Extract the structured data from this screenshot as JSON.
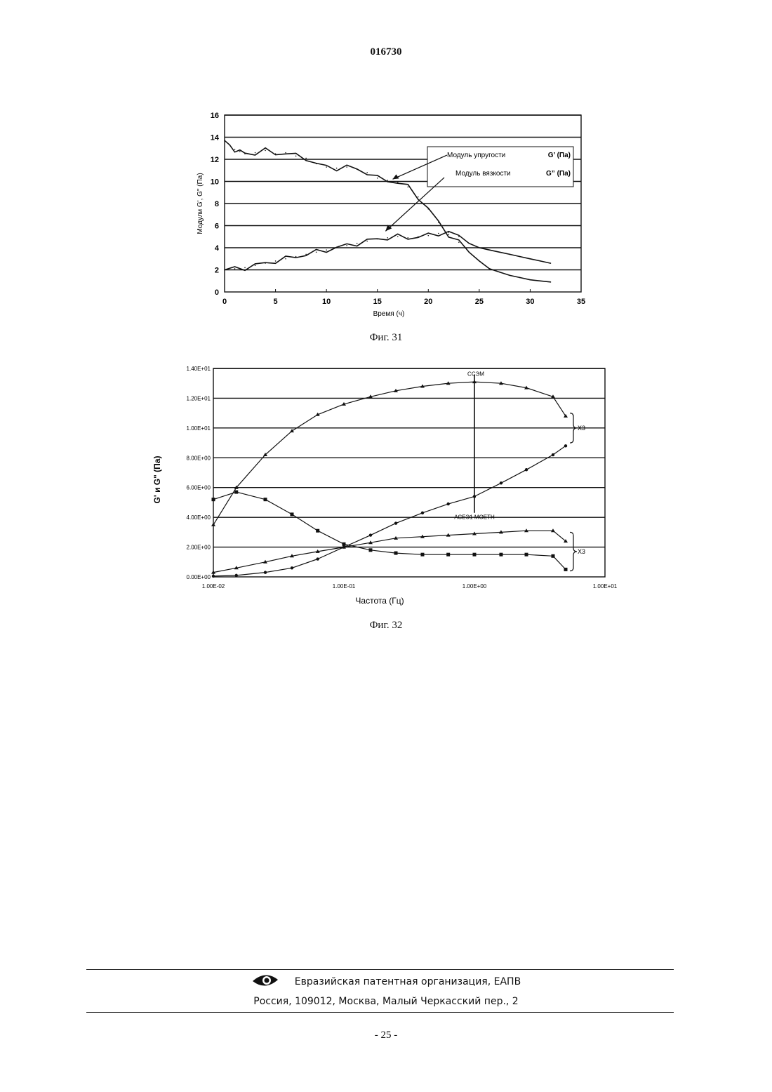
{
  "header": {
    "doc_number": "016730"
  },
  "figures": [
    {
      "caption": "Фиг. 31"
    },
    {
      "caption": "Фиг. 32"
    }
  ],
  "chart_data": [
    {
      "type": "line",
      "xlabel": "Время (ч)",
      "ylabel": "Модули G', G\" (Па)",
      "xlim": [
        0,
        35
      ],
      "ylim": [
        0,
        16
      ],
      "x_ticks": [
        0,
        5,
        10,
        15,
        20,
        25,
        30,
        35
      ],
      "y_ticks": [
        0,
        2,
        4,
        6,
        8,
        10,
        12,
        14,
        16
      ],
      "grid": "horizontal",
      "legend": {
        "position": "top-right",
        "entries": [
          {
            "label": "Модуль упругости",
            "symbol": "G’ (Па)"
          },
          {
            "label": "Модуль вязкости",
            "symbol": "G” (Па)"
          }
        ]
      },
      "series": [
        {
          "x": [
            0,
            0.5,
            1,
            1.5,
            2,
            3,
            4,
            5,
            6,
            7,
            8,
            9,
            10,
            11,
            12,
            13,
            14,
            15,
            16,
            17,
            18,
            19,
            20,
            21,
            22,
            23,
            24,
            25,
            26,
            27,
            28,
            29,
            30,
            31,
            32
          ],
          "y": [
            13.7,
            13.3,
            12.9,
            12.7,
            12.5,
            12.6,
            12.8,
            12.5,
            12.6,
            12.3,
            12.1,
            11.6,
            11.3,
            11.2,
            11.3,
            11.1,
            10.8,
            10.3,
            10.1,
            9.9,
            9.5,
            8.6,
            7.5,
            6.3,
            5.2,
            4.5,
            3.6,
            2.8,
            2.1,
            1.8,
            1.5,
            1.3,
            1.1,
            1.0,
            0.9
          ]
        },
        {
          "x": [
            0,
            1,
            2,
            3,
            4,
            5,
            6,
            7,
            8,
            9,
            10,
            11,
            12,
            13,
            14,
            15,
            16,
            17,
            18,
            19,
            20,
            21,
            22,
            23,
            24,
            25,
            26,
            27,
            28,
            29,
            30,
            31,
            32
          ],
          "y": [
            2.0,
            2.1,
            2.2,
            2.4,
            2.6,
            2.8,
            3.0,
            3.2,
            3.4,
            3.6,
            3.8,
            4.0,
            4.2,
            4.4,
            4.6,
            4.8,
            4.9,
            5.0,
            4.9,
            5.0,
            5.1,
            5.3,
            5.4,
            5.0,
            4.4,
            4.0,
            3.8,
            3.6,
            3.4,
            3.2,
            3.0,
            2.8,
            2.6
          ]
        }
      ]
    },
    {
      "type": "line",
      "xlabel": "Частота (Гц)",
      "ylabel": "G' и G\" (Па)",
      "x_scale": "log",
      "xlim": [
        0.01,
        10
      ],
      "ylim": [
        0,
        14
      ],
      "x_tick_labels": [
        "1.00E-02",
        "1.00E-01",
        "1.00E+00",
        "1.00E+01"
      ],
      "y_tick_labels": [
        "0.00E+00",
        "2.00E+00",
        "4.00E+00",
        "6.00E+00",
        "8.00E+00",
        "1.00E+01",
        "1.20E+01",
        "1.40E+01"
      ],
      "grid": "horizontal",
      "annotations": [
        "ССЭМ",
        "АСЕЭ1 МОЕТН",
        "Х3",
        "Х3"
      ],
      "series": [
        {
          "x": [
            0.01,
            0.015,
            0.025,
            0.04,
            0.063,
            0.1,
            0.16,
            0.25,
            0.4,
            0.63,
            1.0,
            1.6,
            2.5,
            4.0,
            5.0
          ],
          "y": [
            3.5,
            6.0,
            8.2,
            9.8,
            10.9,
            11.6,
            12.1,
            12.5,
            12.8,
            13.0,
            13.1,
            13.0,
            12.7,
            12.1,
            10.8
          ]
        },
        {
          "x": [
            0.01,
            0.015,
            0.025,
            0.04,
            0.063,
            0.1,
            0.16,
            0.25,
            0.4,
            0.63,
            1.0,
            1.6,
            2.5,
            4.0,
            5.0
          ],
          "y": [
            5.2,
            5.7,
            5.2,
            4.2,
            3.1,
            2.2,
            1.8,
            1.6,
            1.5,
            1.5,
            1.5,
            1.5,
            1.5,
            1.4,
            0.5
          ]
        },
        {
          "x": [
            0.01,
            0.015,
            0.025,
            0.04,
            0.063,
            0.1,
            0.16,
            0.25,
            0.4,
            0.63,
            1.0,
            1.6,
            2.5,
            4.0,
            5.0
          ],
          "y": [
            0.05,
            0.1,
            0.3,
            0.6,
            1.2,
            2.0,
            2.8,
            3.6,
            4.3,
            4.9,
            5.4,
            6.3,
            7.2,
            8.2,
            8.8
          ]
        },
        {
          "x": [
            0.01,
            0.015,
            0.025,
            0.04,
            0.063,
            0.1,
            0.16,
            0.25,
            0.4,
            0.63,
            1.0,
            1.6,
            2.5,
            4.0,
            5.0
          ],
          "y": [
            0.3,
            0.6,
            1.0,
            1.4,
            1.7,
            2.0,
            2.3,
            2.6,
            2.7,
            2.8,
            2.9,
            3.0,
            3.1,
            3.1,
            2.4
          ]
        }
      ]
    }
  ],
  "footer": {
    "organization": "Евразийская патентная организация, ЕАПВ",
    "address": "Россия, 109012, Москва, Малый Черкасский пер., 2",
    "page": "- 25 -"
  }
}
